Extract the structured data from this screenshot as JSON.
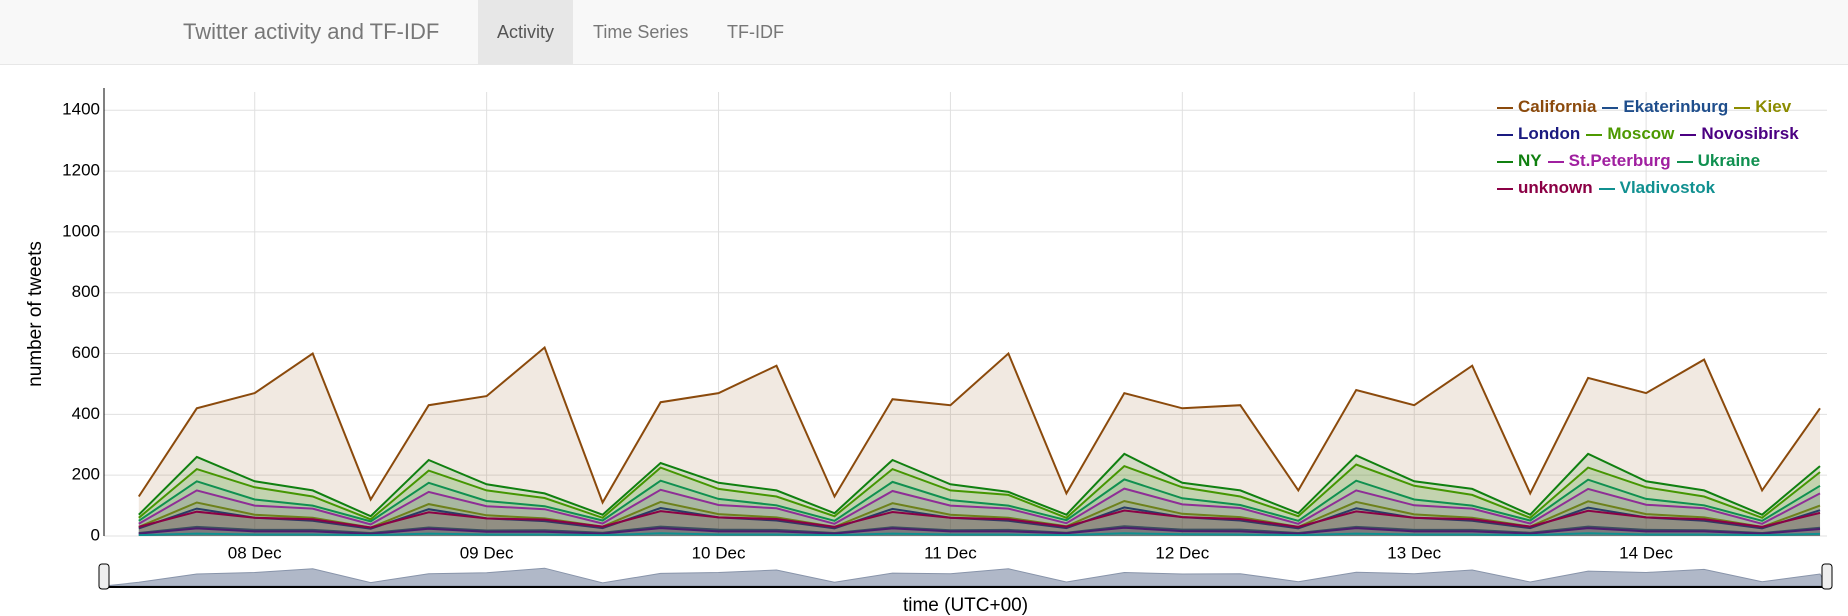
{
  "navbar": {
    "brand": "Twitter activity and TF-IDF",
    "tabs": [
      "Activity",
      "Time Series",
      "TF-IDF"
    ],
    "active_tab": 0
  },
  "chart_data": {
    "type": "line",
    "y_label": "number of tweets",
    "x_label": "time (UTC+00)",
    "grid": true,
    "legend": "top-right",
    "area_fill": true,
    "xlim": [
      7.35,
      14.78
    ],
    "ylim": [
      0,
      1460
    ],
    "xticks": [
      {
        "value": 8,
        "label": "08 Dec"
      },
      {
        "value": 9,
        "label": "09 Dec"
      },
      {
        "value": 10,
        "label": "10 Dec"
      },
      {
        "value": 11,
        "label": "11 Dec"
      },
      {
        "value": 12,
        "label": "12 Dec"
      },
      {
        "value": 13,
        "label": "13 Dec"
      },
      {
        "value": 14,
        "label": "14 Dec"
      }
    ],
    "yticks": [
      0,
      200,
      400,
      600,
      800,
      1000,
      1200,
      1400
    ],
    "x": [
      7.5,
      7.75,
      8,
      8.25,
      8.5,
      8.75,
      9,
      9.25,
      9.5,
      9.75,
      10,
      10.25,
      10.5,
      10.75,
      11,
      11.25,
      11.5,
      11.75,
      12,
      12.25,
      12.5,
      12.75,
      13,
      13.25,
      13.5,
      13.75,
      14,
      14.25,
      14.5,
      14.75
    ],
    "series": [
      {
        "name": "California",
        "color": "#8b4a0c",
        "values": [
          130,
          420,
          470,
          600,
          120,
          430,
          460,
          620,
          110,
          440,
          470,
          560,
          130,
          450,
          430,
          600,
          140,
          470,
          420,
          430,
          150,
          480,
          430,
          560,
          140,
          520,
          470,
          580,
          150,
          420
        ]
      },
      {
        "name": "Ekaterinburg",
        "color": "#1f4e8c",
        "values": [
          10,
          30,
          20,
          20,
          10,
          28,
          18,
          19,
          11,
          31,
          21,
          20,
          10,
          29,
          19,
          20,
          11,
          32,
          21,
          21,
          10,
          30,
          20,
          20,
          11,
          31,
          20,
          19,
          10,
          27
        ]
      },
      {
        "name": "Kiev",
        "color": "#8c8c00",
        "values": [
          30,
          110,
          70,
          60,
          28,
          105,
          68,
          58,
          31,
          112,
          72,
          61,
          30,
          108,
          70,
          60,
          32,
          115,
          73,
          62,
          30,
          112,
          71,
          60,
          31,
          114,
          72,
          61,
          30,
          100
        ]
      },
      {
        "name": "London",
        "color": "#1a1a80",
        "values": [
          25,
          90,
          60,
          50,
          24,
          88,
          58,
          49,
          26,
          92,
          61,
          51,
          25,
          89,
          60,
          50,
          26,
          94,
          62,
          51,
          25,
          91,
          60,
          50,
          26,
          93,
          61,
          50,
          25,
          85
        ]
      },
      {
        "name": "Moscow",
        "color": "#4d9900",
        "values": [
          60,
          220,
          160,
          130,
          55,
          215,
          150,
          125,
          60,
          225,
          155,
          130,
          65,
          220,
          150,
          135,
          60,
          230,
          160,
          130,
          65,
          235,
          165,
          135,
          60,
          225,
          160,
          130,
          60,
          210
        ]
      },
      {
        "name": "Novosibirsk",
        "color": "#4b0082",
        "values": [
          8,
          25,
          15,
          15,
          7,
          24,
          14,
          14,
          8,
          26,
          15,
          15,
          8,
          25,
          15,
          15,
          9,
          27,
          16,
          15,
          8,
          26,
          15,
          15,
          8,
          26,
          15,
          15,
          8,
          23
        ]
      },
      {
        "name": "NY",
        "color": "#108010",
        "values": [
          70,
          260,
          180,
          150,
          65,
          250,
          170,
          140,
          70,
          240,
          175,
          150,
          75,
          250,
          170,
          145,
          70,
          270,
          175,
          150,
          75,
          265,
          180,
          155,
          70,
          270,
          180,
          150,
          70,
          230
        ]
      },
      {
        "name": "St.Peterburg",
        "color": "#a020a0",
        "values": [
          40,
          150,
          100,
          90,
          38,
          145,
          98,
          88,
          41,
          152,
          102,
          91,
          40,
          148,
          100,
          90,
          42,
          156,
          104,
          92,
          40,
          150,
          101,
          90,
          41,
          155,
          103,
          91,
          40,
          140
        ]
      },
      {
        "name": "Ukraine",
        "color": "#109050",
        "values": [
          50,
          180,
          120,
          100,
          48,
          175,
          115,
          98,
          51,
          182,
          122,
          101,
          50,
          178,
          118,
          100,
          52,
          186,
          124,
          102,
          50,
          182,
          120,
          100,
          51,
          185,
          122,
          101,
          50,
          165
        ]
      },
      {
        "name": "unknown",
        "color": "#8b0045",
        "values": [
          30,
          80,
          60,
          55,
          28,
          78,
          58,
          54,
          31,
          82,
          61,
          56,
          30,
          79,
          60,
          55,
          31,
          84,
          62,
          56,
          30,
          81,
          60,
          55,
          31,
          83,
          61,
          55,
          30,
          76
        ]
      },
      {
        "name": "Vladivostok",
        "color": "#109090",
        "values": [
          3,
          8,
          5,
          5,
          3,
          8,
          5,
          5,
          3,
          9,
          5,
          5,
          3,
          8,
          5,
          5,
          3,
          9,
          6,
          5,
          3,
          8,
          5,
          5,
          3,
          9,
          5,
          5,
          3,
          7
        ]
      }
    ]
  }
}
